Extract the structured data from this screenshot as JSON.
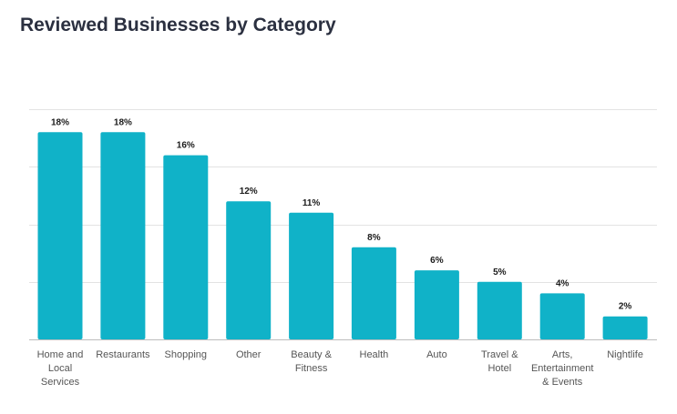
{
  "chart_data": {
    "type": "bar",
    "title": "Reviewed Businesses by Category",
    "categories": [
      "Home and Local Services",
      "Restaurants",
      "Shopping",
      "Other",
      "Beauty & Fitness",
      "Health",
      "Auto",
      "Travel & Hotel",
      "Arts, Entertainment & Events",
      "Nightlife"
    ],
    "category_lines": [
      [
        "Home and",
        "Local",
        "Services"
      ],
      [
        "Restaurants"
      ],
      [
        "Shopping"
      ],
      [
        "Other"
      ],
      [
        "Beauty &",
        "Fitness"
      ],
      [
        "Health"
      ],
      [
        "Auto"
      ],
      [
        "Travel &",
        "Hotel"
      ],
      [
        "Arts,",
        "Entertainment",
        "& Events"
      ],
      [
        "Nightlife"
      ]
    ],
    "values": [
      18,
      18,
      16,
      12,
      11,
      8,
      6,
      5,
      4,
      2
    ],
    "value_labels": [
      "18%",
      "18%",
      "16%",
      "12%",
      "11%",
      "8%",
      "6%",
      "5%",
      "4%",
      "2%"
    ],
    "unit": "%",
    "xlabel": "",
    "ylabel": "",
    "ylim": [
      0,
      20
    ],
    "grid": true,
    "legend": "none",
    "colors": {
      "bar": "#10b2c8",
      "title": "#2b3040"
    }
  }
}
